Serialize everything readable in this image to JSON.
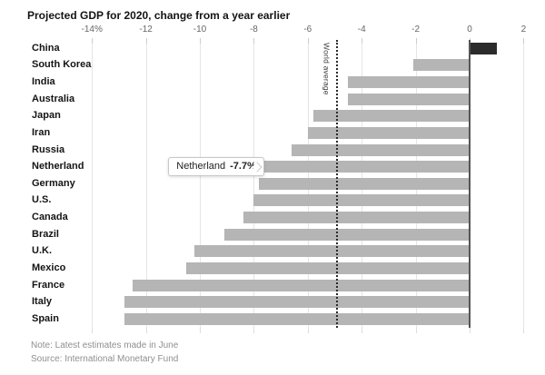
{
  "title": "Projected GDP for 2020, change from a year earlier",
  "note": "Note: Latest estimates made in June",
  "source": "Source: International Monetary Fund",
  "world_average_label": "World average",
  "tooltip": {
    "label": "Netherland",
    "value": "-7.7%"
  },
  "colors": {
    "bar": "#b5b5b5",
    "highlight_bar": "#2b2b2b",
    "grid": "#e5e5e5",
    "zero_line": "#555555",
    "world_line": "#2a2a2a",
    "tick_text": "#666666",
    "label_text": "#141414",
    "note_text": "#8f8f8f"
  },
  "chart_data": {
    "type": "bar",
    "orientation": "horizontal",
    "title": "Projected GDP for 2020, change from a year earlier",
    "categories": [
      "China",
      "South Korea",
      "India",
      "Australia",
      "Japan",
      "Iran",
      "Russia",
      "Netherland",
      "Germany",
      "U.S.",
      "Canada",
      "Brazil",
      "U.K.",
      "Mexico",
      "France",
      "Italy",
      "Spain"
    ],
    "values": [
      1.0,
      -2.1,
      -4.5,
      -4.5,
      -5.8,
      -6.0,
      -6.6,
      -7.7,
      -7.8,
      -8.0,
      -8.4,
      -9.1,
      -10.2,
      -10.5,
      -12.5,
      -12.8,
      -12.8
    ],
    "unit": "%",
    "highlight_category": "China",
    "tooltip_category": "Netherland",
    "tooltip_value_text": "-7.7%",
    "world_average": -4.9,
    "world_average_label": "World average",
    "x_ticks": [
      -14,
      -12,
      -10,
      -8,
      -6,
      -4,
      -2,
      0,
      2
    ],
    "x_tick_labels": [
      "-14%",
      "-12",
      "-10",
      "-8",
      "-6",
      "-4",
      "-2",
      "0",
      "2"
    ],
    "xlim": [
      -15,
      2.6
    ],
    "axis_position": "top",
    "grid": true,
    "legend": false
  }
}
